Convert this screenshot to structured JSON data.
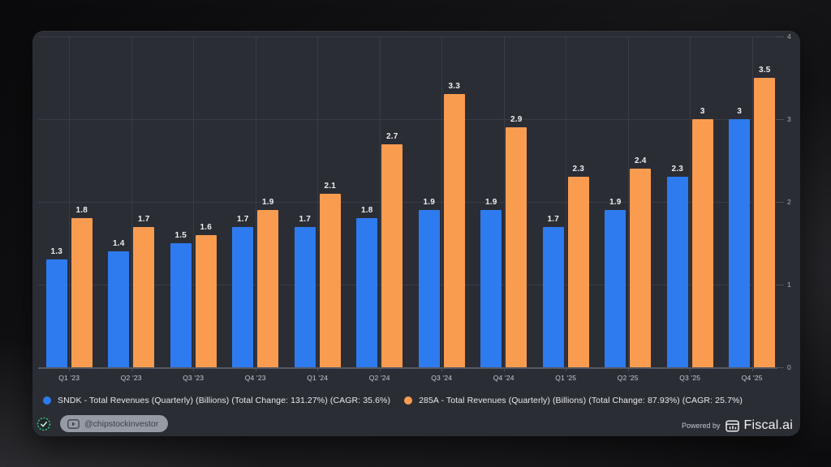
{
  "chart_data": {
    "type": "bar",
    "title": "",
    "categories": [
      "Q1 '23",
      "Q2 '23",
      "Q3 '23",
      "Q4 '23",
      "Q1 '24",
      "Q2 '24",
      "Q3 '24",
      "Q4 '24",
      "Q1 '25",
      "Q2 '25",
      "Q3 '25",
      "Q4 '25"
    ],
    "series": [
      {
        "name": "SNDK - Total Revenues (Quarterly) (Billions) (Total Change: 131.27%) (CAGR: 35.6%)",
        "color": "#2e7bf0",
        "values": [
          1.3,
          1.4,
          1.5,
          1.7,
          1.7,
          1.8,
          1.9,
          1.9,
          1.7,
          1.9,
          2.3,
          3
        ]
      },
      {
        "name": "285A - Total Revenues (Quarterly) (Billions) (Total Change: 87.93%) (CAGR: 25.7%)",
        "color": "#f99c50",
        "values": [
          1.8,
          1.7,
          1.6,
          1.9,
          2.1,
          2.7,
          3.3,
          2.9,
          2.3,
          2.4,
          3,
          3.5
        ]
      }
    ],
    "ylim": [
      0,
      4
    ],
    "yticks": [
      0,
      1,
      2,
      3,
      4
    ],
    "xlabel": "",
    "ylabel": "",
    "grid": true,
    "y_axis_side": "right",
    "legend_position": "bottom-left",
    "colors": {
      "panel_bg": "#2b2d35",
      "gridline": "#3a3c45",
      "value_label": "#eceef0"
    }
  },
  "footer": {
    "verified_icon": "green-check-stamp",
    "channel_handle": "@chipstockinvestor",
    "powered_by_label": "Powered by",
    "brand_name": "Fiscal.ai"
  }
}
